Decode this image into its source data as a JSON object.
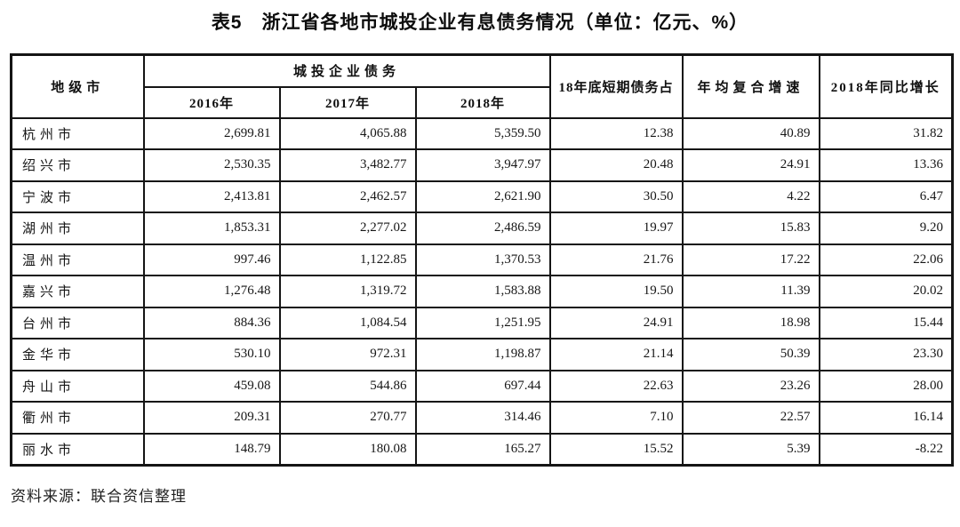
{
  "title": "表5　浙江省各地市城投企业有息债务情况（单位：亿元、%）",
  "source": "资料来源：联合资信整理",
  "table": {
    "header": {
      "city": "地级市",
      "debt_group": "城投企业债务",
      "years": [
        "2016年",
        "2017年",
        "2018年"
      ],
      "short_term": "18年底短期债务占",
      "cagr": "年均复合增速",
      "yoy": "2018年同比增长"
    },
    "rows": [
      {
        "city": "杭州市",
        "y2016": "2,699.81",
        "y2017": "4,065.88",
        "y2018": "5,359.50",
        "short_term": "12.38",
        "cagr": "40.89",
        "yoy": "31.82"
      },
      {
        "city": "绍兴市",
        "y2016": "2,530.35",
        "y2017": "3,482.77",
        "y2018": "3,947.97",
        "short_term": "20.48",
        "cagr": "24.91",
        "yoy": "13.36"
      },
      {
        "city": "宁波市",
        "y2016": "2,413.81",
        "y2017": "2,462.57",
        "y2018": "2,621.90",
        "short_term": "30.50",
        "cagr": "4.22",
        "yoy": "6.47"
      },
      {
        "city": "湖州市",
        "y2016": "1,853.31",
        "y2017": "2,277.02",
        "y2018": "2,486.59",
        "short_term": "19.97",
        "cagr": "15.83",
        "yoy": "9.20"
      },
      {
        "city": "温州市",
        "y2016": "997.46",
        "y2017": "1,122.85",
        "y2018": "1,370.53",
        "short_term": "21.76",
        "cagr": "17.22",
        "yoy": "22.06"
      },
      {
        "city": "嘉兴市",
        "y2016": "1,276.48",
        "y2017": "1,319.72",
        "y2018": "1,583.88",
        "short_term": "19.50",
        "cagr": "11.39",
        "yoy": "20.02"
      },
      {
        "city": "台州市",
        "y2016": "884.36",
        "y2017": "1,084.54",
        "y2018": "1,251.95",
        "short_term": "24.91",
        "cagr": "18.98",
        "yoy": "15.44"
      },
      {
        "city": "金华市",
        "y2016": "530.10",
        "y2017": "972.31",
        "y2018": "1,198.87",
        "short_term": "21.14",
        "cagr": "50.39",
        "yoy": "23.30"
      },
      {
        "city": "舟山市",
        "y2016": "459.08",
        "y2017": "544.86",
        "y2018": "697.44",
        "short_term": "22.63",
        "cagr": "23.26",
        "yoy": "28.00"
      },
      {
        "city": "衢州市",
        "y2016": "209.31",
        "y2017": "270.77",
        "y2018": "314.46",
        "short_term": "7.10",
        "cagr": "22.57",
        "yoy": "16.14"
      },
      {
        "city": "丽水市",
        "y2016": "148.79",
        "y2017": "180.08",
        "y2018": "165.27",
        "short_term": "15.52",
        "cagr": "5.39",
        "yoy": "-8.22"
      }
    ]
  }
}
